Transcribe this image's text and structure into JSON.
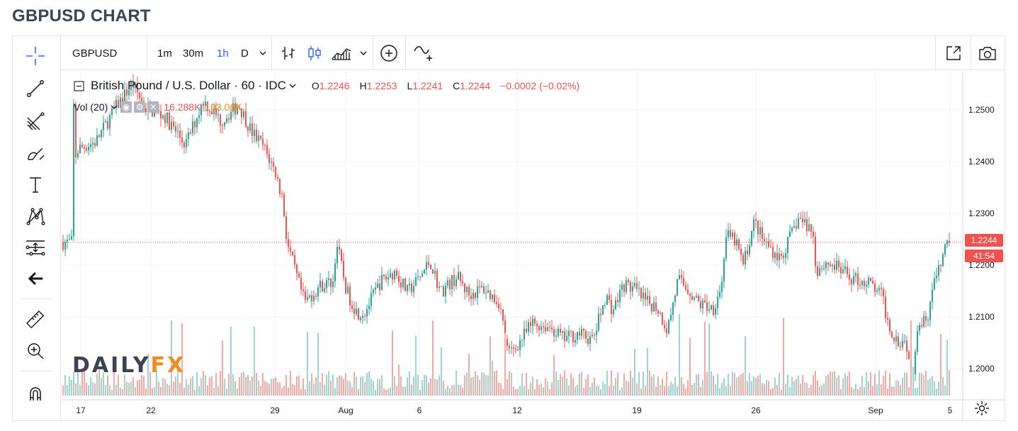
{
  "page_title": "GBPUSD CHART",
  "toolbar": {
    "symbol": "GBPUSD",
    "intervals": [
      "1m",
      "30m",
      "1h",
      "D"
    ],
    "active_interval": "1h",
    "icons": [
      "chevron-down-icon",
      "bar-style-icon",
      "candle-style-icon",
      "indicators-icon",
      "chevron-down-icon",
      "compare-add-icon",
      "indicator-add-icon",
      "popout-icon",
      "camera-icon"
    ]
  },
  "sidebar": {
    "tools": [
      "crosshair-icon",
      "trend-line-icon",
      "pitchfork-icon",
      "brush-icon",
      "text-icon",
      "pattern-icon",
      "forecast-icon",
      "back-arrow-icon",
      "ruler-icon",
      "zoom-in-icon",
      "magnet-icon"
    ]
  },
  "legend": {
    "name": "British Pound / U.S. Dollar · 60 · IDC",
    "o_key": "O",
    "o_val": "1.2246",
    "h_key": "H",
    "h_val": "1.2253",
    "l_key": "L",
    "l_val": "1.2241",
    "c_key": "C",
    "c_val": "1.2244",
    "change": "−0.0002 (−0.02%)"
  },
  "volume_legend": {
    "label": "Vol (20)",
    "value1": "16.288K",
    "value2": "103.06K"
  },
  "price_tags": {
    "last": "1.2244",
    "countdown": "41:54"
  },
  "logo": {
    "part1": "DAILY",
    "part2": "FX"
  },
  "colors": {
    "up": "#26a69a",
    "down": "#ef5350",
    "vol_up": "#9ed5cf",
    "vol_down": "#f4a9a7",
    "accent": "#2962ff",
    "logo_orange": "#f08c1e"
  },
  "chart_data": {
    "type": "candlestick",
    "title": "GBPUSD CHART",
    "series_name": "British Pound / U.S. Dollar · 60 · IDC",
    "interval": "60",
    "ylim": [
      1.194,
      1.2575
    ],
    "y_ticks": [
      "1.2500",
      "1.2400",
      "1.2300",
      "1.2200",
      "1.2100",
      "1.2000"
    ],
    "x_ticks": [
      "17",
      "22",
      "29",
      "Aug",
      "6",
      "12",
      "19",
      "26",
      "Sep",
      "5"
    ],
    "last_price": 1.2244,
    "close_path_knots": [
      [
        17,
        1.2505
      ],
      [
        18,
        1.2405
      ],
      [
        24,
        1.2425
      ],
      [
        48,
        1.2438
      ],
      [
        78,
        1.2508
      ],
      [
        100,
        1.255
      ],
      [
        118,
        1.2503
      ],
      [
        145,
        1.2488
      ],
      [
        175,
        1.2432
      ],
      [
        200,
        1.2518
      ],
      [
        225,
        1.2478
      ],
      [
        250,
        1.251
      ],
      [
        268,
        1.2458
      ],
      [
        285,
        1.2428
      ],
      [
        302,
        1.2378
      ],
      [
        312,
        1.2328
      ],
      [
        318,
        1.2245
      ],
      [
        330,
        1.2185
      ],
      [
        343,
        1.2128
      ],
      [
        365,
        1.216
      ],
      [
        383,
        1.2168
      ],
      [
        388,
        1.2245
      ],
      [
        402,
        1.215
      ],
      [
        417,
        1.2108
      ],
      [
        428,
        1.211
      ],
      [
        450,
        1.2168
      ],
      [
        470,
        1.2188
      ],
      [
        488,
        1.2148
      ],
      [
        505,
        1.2175
      ],
      [
        520,
        1.2208
      ],
      [
        535,
        1.2148
      ],
      [
        558,
        1.2178
      ],
      [
        575,
        1.2143
      ],
      [
        595,
        1.2155
      ],
      [
        618,
        1.2128
      ],
      [
        630,
        1.2028
      ],
      [
        640,
        1.204
      ],
      [
        665,
        1.2088
      ],
      [
        690,
        1.208
      ],
      [
        708,
        1.2058
      ],
      [
        730,
        1.2068
      ],
      [
        750,
        1.2055
      ],
      [
        768,
        1.2142
      ],
      [
        778,
        1.2112
      ],
      [
        793,
        1.2162
      ],
      [
        808,
        1.2155
      ],
      [
        823,
        1.213
      ],
      [
        840,
        1.212
      ],
      [
        855,
        1.2075
      ],
      [
        870,
        1.2172
      ],
      [
        885,
        1.2152
      ],
      [
        900,
        1.2125
      ],
      [
        920,
        1.2118
      ],
      [
        932,
        1.2165
      ],
      [
        937,
        1.2258
      ],
      [
        952,
        1.2245
      ],
      [
        962,
        1.22
      ],
      [
        978,
        1.2285
      ],
      [
        990,
        1.2248
      ],
      [
        1015,
        1.2212
      ],
      [
        1040,
        1.229
      ],
      [
        1060,
        1.2268
      ],
      [
        1065,
        1.219
      ],
      [
        1080,
        1.2205
      ],
      [
        1095,
        1.2195
      ],
      [
        1115,
        1.2175
      ],
      [
        1140,
        1.2165
      ],
      [
        1158,
        1.214
      ],
      [
        1168,
        1.208
      ],
      [
        1180,
        1.2055
      ],
      [
        1192,
        1.2055
      ],
      [
        1200,
        1.1975
      ],
      [
        1208,
        1.2085
      ],
      [
        1222,
        1.21
      ],
      [
        1230,
        1.216
      ],
      [
        1240,
        1.2195
      ],
      [
        1250,
        1.2252
      ],
      [
        1256,
        1.2244
      ]
    ]
  }
}
